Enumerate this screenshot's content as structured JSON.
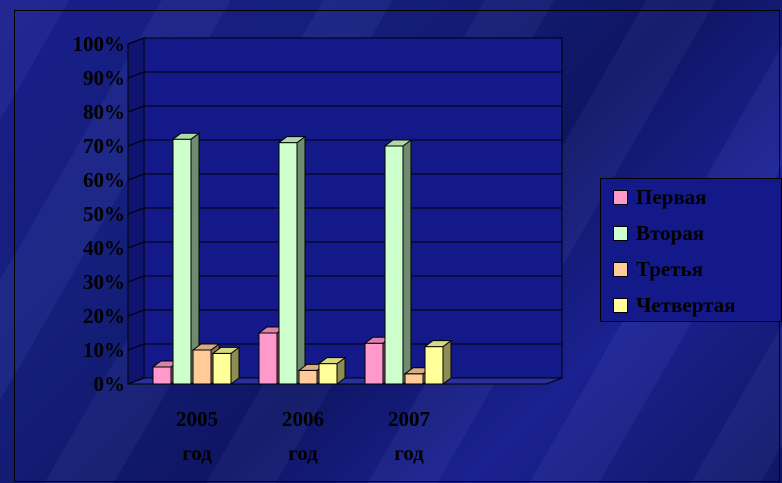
{
  "chart_data": {
    "type": "bar",
    "categories": [
      "2005 год",
      "2006 год",
      "2007 год"
    ],
    "category_lines": [
      [
        "2005",
        "год"
      ],
      [
        "2006",
        "год"
      ],
      [
        "2007",
        "год"
      ]
    ],
    "series": [
      {
        "name": "Первая",
        "values": [
          5,
          15,
          12
        ],
        "color": "#ff99cc"
      },
      {
        "name": "Вторая",
        "values": [
          72,
          71,
          70
        ],
        "color": "#ccffcc"
      },
      {
        "name": "Третья",
        "values": [
          10,
          4,
          3
        ],
        "color": "#ffcc99"
      },
      {
        "name": "Четвертая",
        "values": [
          9,
          6,
          11
        ],
        "color": "#ffff99"
      }
    ],
    "yticks": [
      "0%",
      "10%",
      "20%",
      "30%",
      "40%",
      "50%",
      "60%",
      "70%",
      "80%",
      "90%",
      "100%"
    ],
    "ylim": [
      0,
      100
    ],
    "grid": true,
    "legend_position": "right",
    "title": "",
    "xlabel": "",
    "ylabel": ""
  }
}
